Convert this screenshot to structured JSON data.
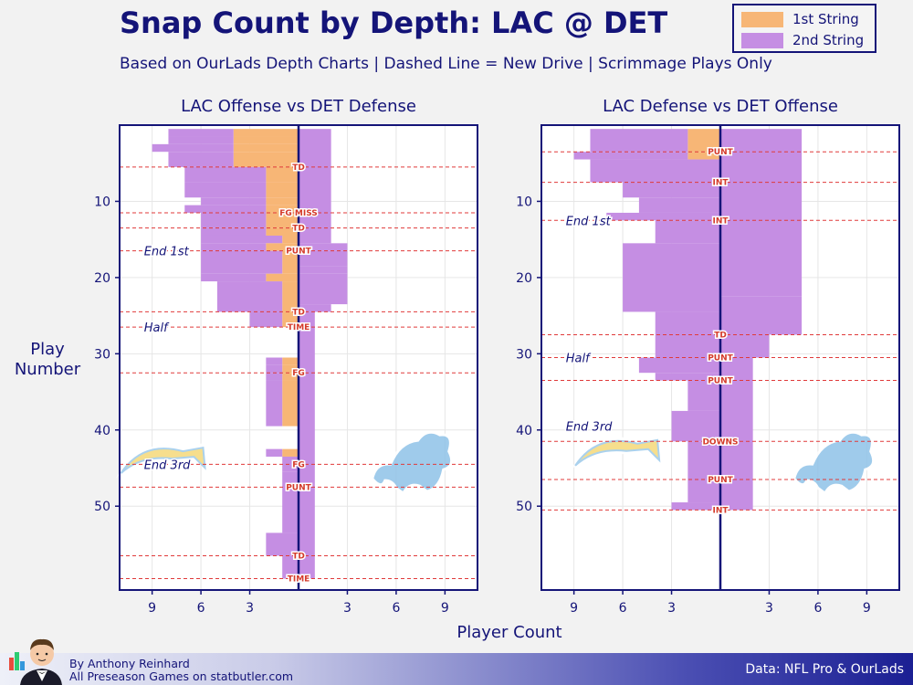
{
  "header": {
    "title": "Snap Count by Depth: LAC @ DET",
    "subtitle": "Based on OurLads Depth Charts  |  Dashed Line = New Drive  |  Scrimmage Plays Only"
  },
  "legend": [
    {
      "label": "1st String",
      "color": "#f7b676"
    },
    {
      "label": "2nd String",
      "color": "#c58ee3"
    }
  ],
  "axes": {
    "ylabel_line1": "Play",
    "ylabel_line2": "Number",
    "xlabel": "Player Count"
  },
  "footer": {
    "author": "By Anthony Reinhard",
    "site": "All Preseason Games on statbutler.com",
    "source": "Data: NFL Pro & OurLads"
  },
  "chart_data": [
    {
      "type": "bar",
      "orientation": "horizontal-diverging",
      "title": "LAC Offense vs DET Defense",
      "xlabel": "Player Count",
      "ylabel": "Play Number",
      "xlim": [
        -11,
        11
      ],
      "ylim": [
        0,
        61
      ],
      "xticks": [
        -9,
        -6,
        -3,
        3,
        6,
        9
      ],
      "xtick_labels": [
        "9",
        "6",
        "3",
        "3",
        "6",
        "9"
      ],
      "yticks": [
        10,
        20,
        30,
        40,
        50
      ],
      "left_team": "LAC",
      "right_team": "DET",
      "left_bars": [
        {
          "start": 1,
          "end": 1,
          "first": 4,
          "second": 4
        },
        {
          "start": 2,
          "end": 2,
          "first": 4,
          "second": 4
        },
        {
          "start": 3,
          "end": 3,
          "first": 4,
          "second": 5
        },
        {
          "start": 4,
          "end": 5,
          "first": 4,
          "second": 4
        },
        {
          "start": 6,
          "end": 7,
          "first": 2,
          "second": 5
        },
        {
          "start": 8,
          "end": 9,
          "first": 2,
          "second": 5
        },
        {
          "start": 10,
          "end": 10,
          "first": 2,
          "second": 4
        },
        {
          "start": 11,
          "end": 11,
          "first": 2,
          "second": 5
        },
        {
          "start": 12,
          "end": 13,
          "first": 2,
          "second": 4
        },
        {
          "start": 14,
          "end": 14,
          "first": 2,
          "second": 4
        },
        {
          "start": 15,
          "end": 15,
          "first": 1,
          "second": 5
        },
        {
          "start": 16,
          "end": 16,
          "first": 2,
          "second": 4
        },
        {
          "start": 17,
          "end": 19,
          "first": 1,
          "second": 5
        },
        {
          "start": 20,
          "end": 20,
          "first": 2,
          "second": 4
        },
        {
          "start": 21,
          "end": 24,
          "first": 1,
          "second": 4
        },
        {
          "start": 25,
          "end": 26,
          "first": 1,
          "second": 2
        },
        {
          "start": 31,
          "end": 31,
          "first": 1,
          "second": 1
        },
        {
          "start": 32,
          "end": 32,
          "first": 1,
          "second": 1
        },
        {
          "start": 33,
          "end": 33,
          "first": 1,
          "second": 1
        },
        {
          "start": 34,
          "end": 39,
          "first": 1,
          "second": 1
        },
        {
          "start": 43,
          "end": 43,
          "first": 1,
          "second": 1
        },
        {
          "start": 44,
          "end": 45,
          "first": 0,
          "second": 1
        },
        {
          "start": 46,
          "end": 53,
          "first": 0,
          "second": 1
        },
        {
          "start": 54,
          "end": 56,
          "first": 0,
          "second": 2
        },
        {
          "start": 57,
          "end": 59,
          "first": 0,
          "second": 1
        }
      ],
      "right_bars": [
        {
          "start": 1,
          "end": 15,
          "first": 0,
          "second": 2
        },
        {
          "start": 16,
          "end": 16,
          "first": 0,
          "second": 3
        },
        {
          "start": 17,
          "end": 18,
          "first": 0,
          "second": 3
        },
        {
          "start": 19,
          "end": 19,
          "first": 0,
          "second": 3
        },
        {
          "start": 20,
          "end": 23,
          "first": 0,
          "second": 3
        },
        {
          "start": 24,
          "end": 24,
          "first": 0,
          "second": 2
        },
        {
          "start": 25,
          "end": 59,
          "first": 0,
          "second": 1
        }
      ],
      "drive_lines": [
        {
          "play": 5.5,
          "label": "TD"
        },
        {
          "play": 11.5,
          "label": "FG MISS"
        },
        {
          "play": 13.5,
          "label": "TD"
        },
        {
          "play": 16.5,
          "label": "PUNT"
        },
        {
          "play": 24.5,
          "label": "TD"
        },
        {
          "play": 26.5,
          "label": "TIME"
        },
        {
          "play": 32.5,
          "label": "FG"
        },
        {
          "play": 44.5,
          "label": "FG"
        },
        {
          "play": 47.5,
          "label": "PUNT"
        },
        {
          "play": 56.5,
          "label": "TD"
        },
        {
          "play": 59.5,
          "label": "TIME"
        }
      ],
      "quarter_markers": [
        {
          "play": 16.5,
          "label": "End 1st"
        },
        {
          "play": 26.5,
          "label": "Half"
        },
        {
          "play": 44.5,
          "label": "End 3rd"
        }
      ]
    },
    {
      "type": "bar",
      "orientation": "horizontal-diverging",
      "title": "LAC Defense vs DET Offense",
      "xlabel": "Player Count",
      "ylabel": "Play Number",
      "xlim": [
        -11,
        11
      ],
      "ylim": [
        0,
        61
      ],
      "xticks": [
        -9,
        -6,
        -3,
        3,
        6,
        9
      ],
      "xtick_labels": [
        "9",
        "6",
        "3",
        "3",
        "6",
        "9"
      ],
      "yticks": [
        10,
        20,
        30,
        40,
        50
      ],
      "left_team": "LAC",
      "right_team": "DET",
      "left_bars": [
        {
          "start": 1,
          "end": 3,
          "first": 2,
          "second": 6
        },
        {
          "start": 4,
          "end": 4,
          "first": 2,
          "second": 7
        },
        {
          "start": 5,
          "end": 7,
          "first": 0,
          "second": 8
        },
        {
          "start": 8,
          "end": 9,
          "first": 0,
          "second": 6
        },
        {
          "start": 10,
          "end": 11,
          "first": 0,
          "second": 5
        },
        {
          "start": 12,
          "end": 12,
          "first": 0,
          "second": 7
        },
        {
          "start": 13,
          "end": 15,
          "first": 0,
          "second": 4
        },
        {
          "start": 16,
          "end": 24,
          "first": 0,
          "second": 6
        },
        {
          "start": 25,
          "end": 30,
          "first": 0,
          "second": 4
        },
        {
          "start": 31,
          "end": 32,
          "first": 0,
          "second": 5
        },
        {
          "start": 33,
          "end": 33,
          "first": 0,
          "second": 4
        },
        {
          "start": 34,
          "end": 37,
          "first": 0,
          "second": 2
        },
        {
          "start": 38,
          "end": 41,
          "first": 0,
          "second": 3
        },
        {
          "start": 42,
          "end": 49,
          "first": 0,
          "second": 2
        },
        {
          "start": 50,
          "end": 50,
          "first": 0,
          "second": 3
        }
      ],
      "right_bars": [
        {
          "start": 1,
          "end": 22,
          "first": 0,
          "second": 5
        },
        {
          "start": 23,
          "end": 27,
          "first": 0,
          "second": 5
        },
        {
          "start": 28,
          "end": 30,
          "first": 0,
          "second": 3
        },
        {
          "start": 31,
          "end": 50,
          "first": 0,
          "second": 2
        }
      ],
      "drive_lines": [
        {
          "play": 3.5,
          "label": "PUNT"
        },
        {
          "play": 7.5,
          "label": "INT"
        },
        {
          "play": 12.5,
          "label": "INT"
        },
        {
          "play": 27.5,
          "label": "TD"
        },
        {
          "play": 30.5,
          "label": "PUNT"
        },
        {
          "play": 33.5,
          "label": "PUNT"
        },
        {
          "play": 41.5,
          "label": "DOWNS"
        },
        {
          "play": 46.5,
          "label": "PUNT"
        },
        {
          "play": 50.5,
          "label": "INT"
        }
      ],
      "quarter_markers": [
        {
          "play": 12.5,
          "label": "End 1st"
        },
        {
          "play": 30.5,
          "label": "Half"
        },
        {
          "play": 39.5,
          "label": "End 3rd"
        }
      ]
    }
  ]
}
